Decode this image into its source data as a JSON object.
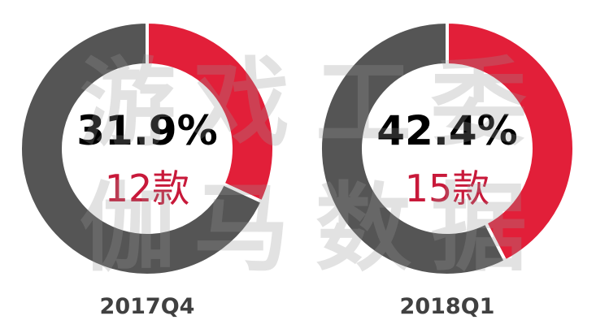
{
  "chart_data": [
    {
      "type": "pie",
      "subtype": "donut",
      "period": "2017Q4",
      "percent_label": "31.9%",
      "count_label": "12款",
      "slices": [
        {
          "value": 31.9,
          "color": "#e21f39"
        },
        {
          "value": 68.1,
          "color": "#555555"
        }
      ]
    },
    {
      "type": "pie",
      "subtype": "donut",
      "period": "2018Q1",
      "percent_label": "42.4%",
      "count_label": "15款",
      "slices": [
        {
          "value": 42.4,
          "color": "#e21f39"
        },
        {
          "value": 57.6,
          "color": "#555555"
        }
      ]
    }
  ],
  "colors": {
    "highlight": "#e21f39",
    "remainder": "#555555",
    "count_text": "#c8193a",
    "percent_text": "#000000",
    "period_text": "#404040"
  },
  "watermark": [
    "游",
    "戏",
    "工",
    "委",
    "伽",
    "马",
    "数",
    "据"
  ]
}
